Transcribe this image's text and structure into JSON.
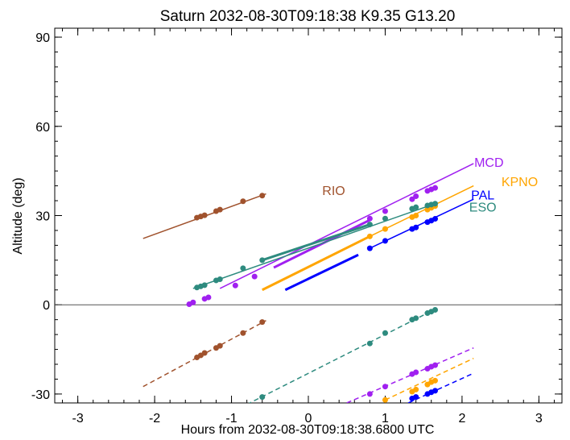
{
  "chart_data": {
    "type": "line",
    "title": "Saturn 2032-08-30T09:18:38  K9.35  G13.20",
    "xlabel": "Hours from 2032-08-30T09:18:38.6800 UTC",
    "ylabel": "Altitude (deg)",
    "xlim": [
      -3.3,
      3.3
    ],
    "ylim": [
      -33,
      93
    ],
    "x_ticks": [
      -3,
      -2,
      -1,
      0,
      1,
      2,
      3
    ],
    "x_tick_labels": [
      "-3",
      "-2",
      "-1",
      "0",
      "1",
      "2",
      "3"
    ],
    "y_ticks": [
      -30,
      0,
      30,
      60,
      90
    ],
    "y_tick_labels": [
      "-30",
      "0",
      "30",
      "60",
      "90"
    ],
    "zero_line": true,
    "grid": false,
    "series": [
      {
        "name": "RIO",
        "color": "#a0522d",
        "label_pos": [
          0.33,
          38.5
        ],
        "segments": [
          {
            "style": "solid",
            "width": 1.5,
            "points": [
              [
                -2.15,
                22.3
              ],
              [
                -0.55,
                37.3
              ]
            ]
          },
          {
            "style": "dashed",
            "width": 1.5,
            "points": [
              [
                -2.15,
                -27.5
              ],
              [
                -0.55,
                -5.3
              ]
            ]
          }
        ],
        "markers": [
          [
            -1.45,
            29.3
          ],
          [
            -1.4,
            29.7
          ],
          [
            -1.35,
            30.1
          ],
          [
            -1.2,
            31.5
          ],
          [
            -1.15,
            32.0
          ],
          [
            -0.85,
            34.8
          ],
          [
            -0.6,
            36.7
          ],
          [
            -1.45,
            -17.7
          ],
          [
            -1.4,
            -17.0
          ],
          [
            -1.35,
            -16.2
          ],
          [
            -1.2,
            -14.5
          ],
          [
            -1.15,
            -13.8
          ],
          [
            -0.85,
            -9.5
          ],
          [
            -0.6,
            -5.8
          ]
        ]
      },
      {
        "name": "MCD",
        "color": "#a020f0",
        "label_pos": [
          2.35,
          48.0
        ],
        "segments": [
          {
            "style": "solid",
            "width": 1.5,
            "points": [
              [
                -1.15,
                5.5
              ],
              [
                2.15,
                47.5
              ]
            ]
          },
          {
            "style": "solid",
            "width": 3,
            "points": [
              [
                -0.45,
                12.5
              ],
              [
                0.8,
                28.5
              ]
            ]
          },
          {
            "style": "dashed",
            "width": 1.5,
            "points": [
              [
                0.5,
                -33.0
              ],
              [
                2.15,
                -14.5
              ]
            ]
          }
        ],
        "markers": [
          [
            -1.55,
            0.2
          ],
          [
            -1.5,
            0.8
          ],
          [
            -1.3,
            2.5
          ],
          [
            -1.35,
            2.0
          ],
          [
            -0.95,
            6.5
          ],
          [
            -0.7,
            9.5
          ],
          [
            0.8,
            29.0
          ],
          [
            1.0,
            31.5
          ],
          [
            1.35,
            35.5
          ],
          [
            1.4,
            36.5
          ],
          [
            1.55,
            38.3
          ],
          [
            1.6,
            38.8
          ],
          [
            1.65,
            39.3
          ],
          [
            0.8,
            -30.0
          ],
          [
            1.0,
            -27.5
          ],
          [
            1.35,
            -23.3
          ],
          [
            1.4,
            -22.7
          ],
          [
            1.55,
            -21.5
          ],
          [
            1.6,
            -20.8
          ],
          [
            1.65,
            -20.3
          ]
        ]
      },
      {
        "name": "KPNO",
        "color": "#ffa500",
        "label_pos": [
          2.75,
          41.5
        ],
        "segments": [
          {
            "style": "solid",
            "width": 1.5,
            "points": [
              [
                0.8,
                23.0
              ],
              [
                2.15,
                40.0
              ]
            ]
          },
          {
            "style": "solid",
            "width": 3,
            "points": [
              [
                -0.6,
                5.0
              ],
              [
                0.8,
                23.0
              ]
            ]
          },
          {
            "style": "dashed",
            "width": 1.5,
            "points": [
              [
                1.0,
                -32.0
              ],
              [
                2.15,
                -18.0
              ]
            ]
          }
        ],
        "markers": [
          [
            0.8,
            23.0
          ],
          [
            1.0,
            25.5
          ],
          [
            1.35,
            29.5
          ],
          [
            1.4,
            30.0
          ],
          [
            1.55,
            32.0
          ],
          [
            1.6,
            32.6
          ],
          [
            1.65,
            33.2
          ],
          [
            1.0,
            -32.0
          ],
          [
            1.35,
            -29.2
          ],
          [
            1.4,
            -28.5
          ],
          [
            1.55,
            -26.8
          ],
          [
            1.6,
            -26.0
          ],
          [
            1.65,
            -25.5
          ]
        ]
      },
      {
        "name": "PAL",
        "color": "#0000ff",
        "label_pos": [
          2.27,
          37.0
        ],
        "segments": [
          {
            "style": "solid",
            "width": 1.5,
            "points": [
              [
                0.8,
                19.0
              ],
              [
                2.15,
                35.5
              ]
            ]
          },
          {
            "style": "solid",
            "width": 3,
            "points": [
              [
                -0.3,
                5.0
              ],
              [
                0.65,
                16.8
              ]
            ]
          },
          {
            "style": "dashed",
            "width": 1.5,
            "points": [
              [
                1.3,
                -33.0
              ],
              [
                2.15,
                -23.0
              ]
            ]
          }
        ],
        "markers": [
          [
            0.8,
            19.0
          ],
          [
            1.0,
            21.5
          ],
          [
            1.35,
            25.5
          ],
          [
            1.4,
            26.0
          ],
          [
            1.55,
            27.8
          ],
          [
            1.6,
            28.3
          ],
          [
            1.65,
            28.9
          ],
          [
            1.35,
            -31.5
          ],
          [
            1.4,
            -31.0
          ],
          [
            1.55,
            -30.0
          ],
          [
            1.6,
            -29.4
          ],
          [
            1.65,
            -28.9
          ]
        ]
      },
      {
        "name": "ESO",
        "color": "#2e8b7f",
        "label_pos": [
          2.27,
          33.0
        ],
        "segments": [
          {
            "style": "solid",
            "width": 1.5,
            "points": [
              [
                -1.5,
                5.5
              ],
              [
                1.65,
                34.0
              ]
            ]
          },
          {
            "style": "solid",
            "width": 3,
            "points": [
              [
                -0.6,
                15.0
              ],
              [
                0.8,
                27.0
              ]
            ]
          },
          {
            "style": "dashed",
            "width": 1.5,
            "points": [
              [
                -0.8,
                -33.5
              ],
              [
                1.65,
                -1.5
              ]
            ]
          }
        ],
        "markers": [
          [
            -1.45,
            5.8
          ],
          [
            -1.4,
            6.2
          ],
          [
            -1.35,
            6.6
          ],
          [
            -1.2,
            8.2
          ],
          [
            -1.15,
            8.6
          ],
          [
            -0.85,
            12.3
          ],
          [
            -0.6,
            15.0
          ],
          [
            0.8,
            27.0
          ],
          [
            1.0,
            29.0
          ],
          [
            1.35,
            32.3
          ],
          [
            1.4,
            32.8
          ],
          [
            1.55,
            33.4
          ],
          [
            1.6,
            33.7
          ],
          [
            1.65,
            34.0
          ],
          [
            -0.6,
            -31.0
          ],
          [
            0.8,
            -13.0
          ],
          [
            1.0,
            -9.5
          ],
          [
            1.35,
            -5.0
          ],
          [
            1.4,
            -4.5
          ],
          [
            1.55,
            -2.8
          ],
          [
            1.6,
            -2.3
          ],
          [
            1.65,
            -1.7
          ]
        ]
      }
    ]
  }
}
